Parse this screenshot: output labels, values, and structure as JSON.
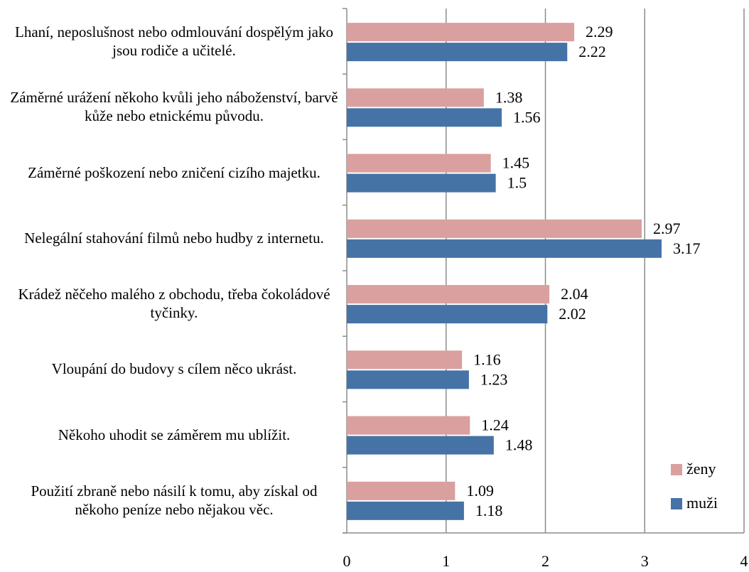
{
  "chart_data": {
    "type": "bar",
    "orientation": "horizontal",
    "categories": [
      "Lhaní, neposlušnost nebo odmlouvání dospělým jako jsou rodiče a učitelé.",
      "Záměrné urážení někoho kvůli jeho náboženství, barvě kůže nebo etnickému původu.",
      "Záměrné poškození nebo zničení cizího majetku.",
      "Nelegální stahování filmů nebo hudby z internetu.",
      "Krádež něčeho malého z obchodu, třeba čokoládové tyčinky.",
      "Vloupání do budovy s cílem něco ukrást.",
      "Někoho uhodit se záměrem mu ublížit.",
      "Použití zbraně nebo násilí k tomu, aby získal od někoho peníze nebo nějakou věc."
    ],
    "series": [
      {
        "name": "ženy",
        "color": "#d9a09f",
        "values": [
          2.29,
          1.38,
          1.45,
          2.97,
          2.04,
          1.16,
          1.24,
          1.09
        ]
      },
      {
        "name": "muži",
        "color": "#4573a6",
        "values": [
          2.22,
          1.56,
          1.5,
          3.17,
          2.02,
          1.23,
          1.48,
          1.18
        ]
      }
    ],
    "xlim": [
      0,
      4
    ],
    "xticks": [
      0,
      1,
      2,
      3,
      4
    ],
    "grid": true,
    "legend": "bottom-right"
  }
}
